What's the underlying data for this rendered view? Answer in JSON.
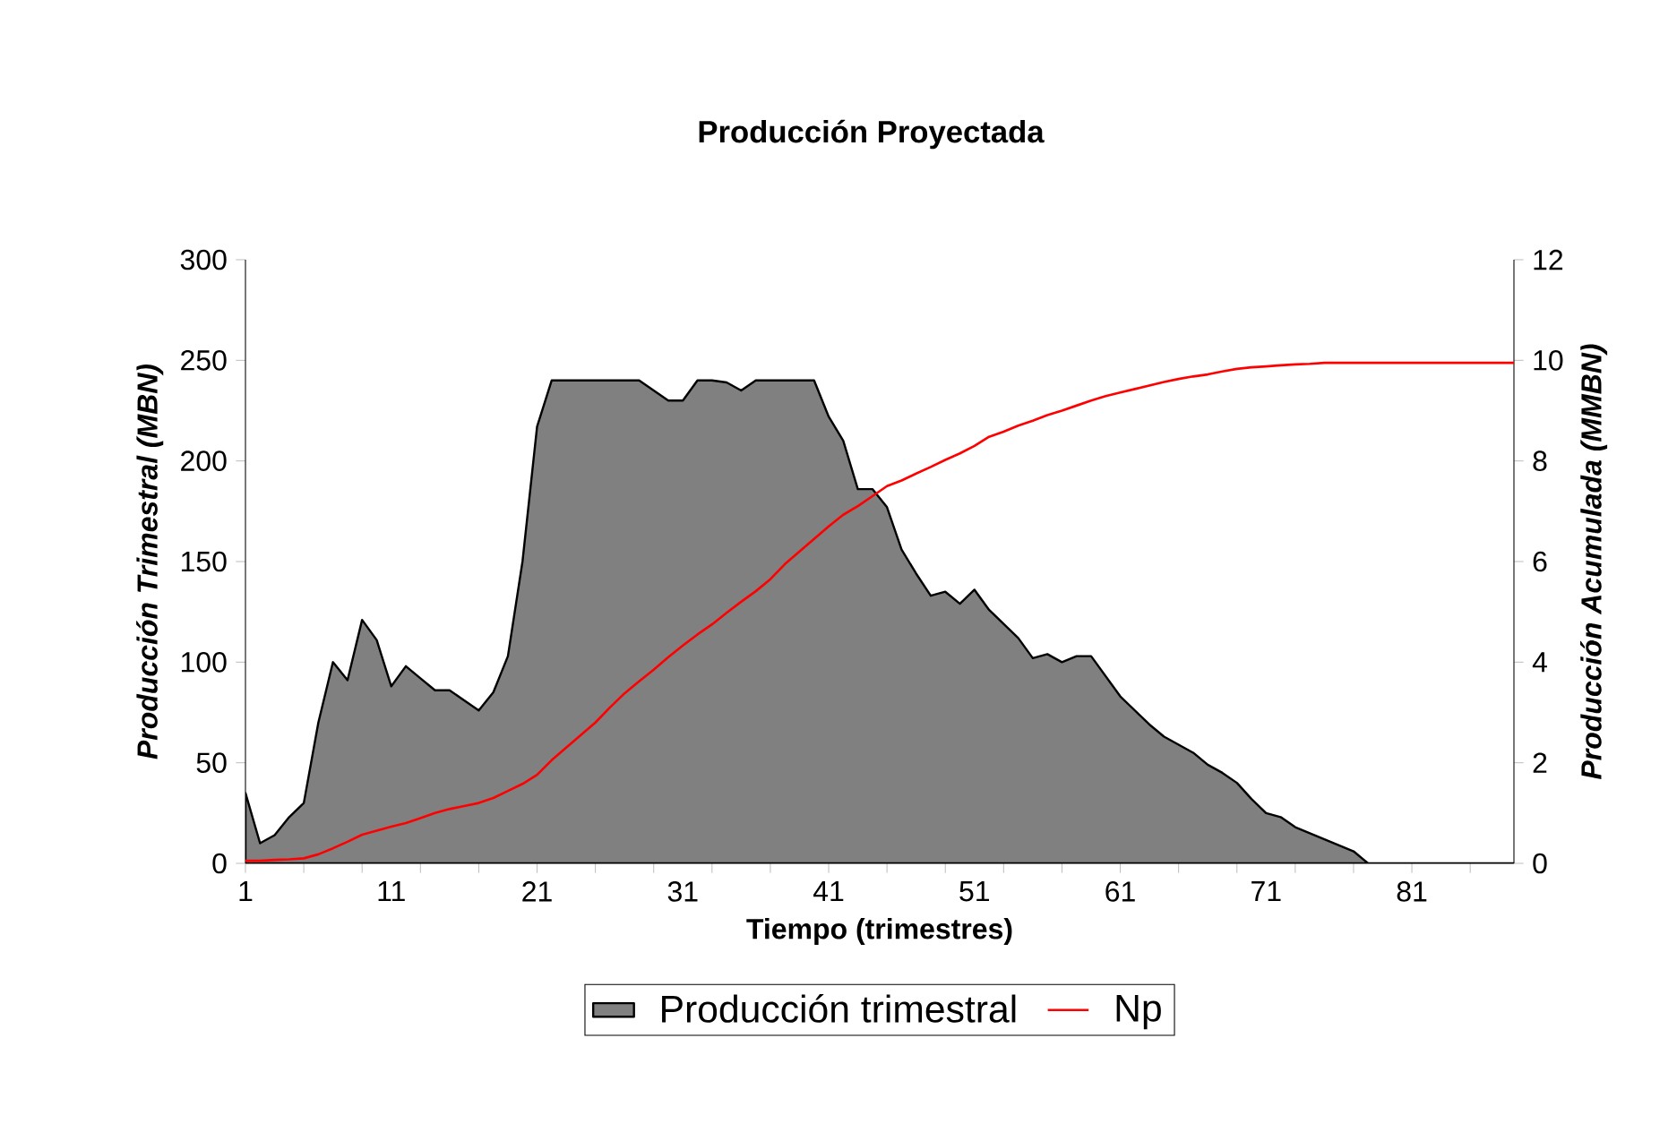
{
  "chart_data": {
    "type": "area",
    "title": "Producción Proyectada",
    "xlabel": "Tiempo (trimestres)",
    "ylabel": "Producción Trimestral (MBN)",
    "y2label": "Producción Acumulada (MMBN)",
    "categories": [
      "1",
      null,
      null,
      null,
      null,
      null,
      null,
      null,
      null,
      null,
      "11",
      null,
      null,
      null,
      null,
      null,
      null,
      null,
      null,
      null,
      "21",
      null,
      null,
      null,
      null,
      null,
      null,
      null,
      null,
      null,
      "31",
      null,
      null,
      null,
      null,
      null,
      null,
      null,
      null,
      null,
      "41",
      null,
      null,
      null,
      null,
      null,
      null,
      null,
      null,
      null,
      "51",
      null,
      null,
      null,
      null,
      null,
      null,
      null,
      null,
      null,
      "61",
      null,
      null,
      null,
      null,
      null,
      null,
      null,
      null,
      null,
      "71",
      null,
      null,
      null,
      null,
      null,
      null,
      null,
      null,
      null,
      "81",
      null,
      null,
      null,
      null,
      null,
      null,
      null
    ],
    "series": [
      {
        "name": "Producción trimestral",
        "color": "#808080",
        "values": [
          35,
          10,
          14,
          23,
          30,
          70,
          100,
          91,
          121,
          111,
          88,
          98,
          92,
          86,
          86,
          81,
          76,
          85,
          103,
          150,
          217,
          240,
          240,
          240,
          240,
          240,
          240,
          240,
          235,
          230,
          230,
          240,
          240,
          239,
          235,
          240,
          240,
          240,
          240,
          240,
          222,
          210,
          186,
          186,
          177,
          156,
          144,
          133,
          135,
          129,
          136,
          126,
          119,
          112,
          102,
          104,
          100,
          103,
          103,
          93,
          83,
          76,
          69,
          63,
          59,
          55,
          49,
          45,
          40,
          32,
          25,
          23,
          18,
          15,
          12,
          9,
          6,
          0,
          0,
          0,
          0,
          0,
          0,
          0,
          0,
          0,
          0,
          0
        ]
      },
      {
        "name": "Np",
        "type": "line",
        "axis": "y2",
        "color": "#ff0000",
        "values": [
          0.05,
          0.05,
          0.07,
          0.08,
          0.1,
          0.18,
          0.3,
          0.43,
          0.57,
          0.65,
          0.73,
          0.8,
          0.9,
          1.0,
          1.08,
          1.14,
          1.2,
          1.3,
          1.44,
          1.58,
          1.76,
          2.05,
          2.3,
          2.55,
          2.8,
          3.1,
          3.38,
          3.62,
          3.85,
          4.1,
          4.33,
          4.55,
          4.75,
          4.98,
          5.2,
          5.41,
          5.65,
          5.95,
          6.2,
          6.45,
          6.7,
          6.93,
          7.1,
          7.3,
          7.5,
          7.61,
          7.75,
          7.88,
          8.02,
          8.15,
          8.3,
          8.48,
          8.58,
          8.7,
          8.8,
          8.91,
          9.0,
          9.1,
          9.2,
          9.29,
          9.36,
          9.43,
          9.5,
          9.57,
          9.63,
          9.68,
          9.72,
          9.78,
          9.83,
          9.86,
          9.88,
          9.9,
          9.92,
          9.93,
          9.95,
          9.95,
          9.95,
          9.95,
          9.95,
          9.95,
          9.95,
          9.95,
          9.95,
          9.95,
          9.95,
          9.95,
          9.95,
          9.95
        ]
      }
    ],
    "ylim": [
      0,
      300
    ],
    "yticks": [
      0,
      50,
      100,
      150,
      200,
      250,
      300
    ],
    "y2lim": [
      0,
      12
    ],
    "y2ticks": [
      0,
      2,
      4,
      6,
      8,
      10,
      12
    ],
    "legend": "bottom"
  }
}
